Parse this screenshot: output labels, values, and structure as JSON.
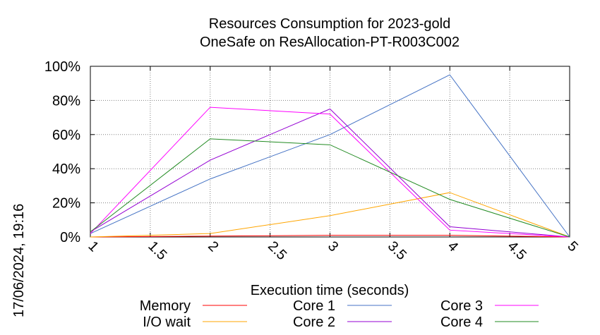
{
  "chart_data": {
    "type": "line",
    "title": "Resources Consumption for 2023-gold",
    "subtitle": "OneSafe on ResAllocation-PT-R003C002",
    "xlabel": "Execution time (seconds)",
    "ylabel": "",
    "xlim": [
      1,
      5
    ],
    "ylim": [
      0,
      100
    ],
    "x_ticks": [
      "1",
      "1.5",
      "2",
      "2.5",
      "3",
      "3.5",
      "4",
      "4.5",
      "5"
    ],
    "x_tick_values": [
      1,
      1.5,
      2,
      2.5,
      3,
      3.5,
      4,
      4.5,
      5
    ],
    "y_ticks": [
      "0%",
      "20%",
      "40%",
      "60%",
      "80%",
      "100%"
    ],
    "y_tick_values": [
      0,
      20,
      40,
      60,
      80,
      100
    ],
    "grid": true,
    "legend_position": "bottom",
    "x": [
      1,
      2,
      3,
      4,
      5
    ],
    "series": [
      {
        "name": "Memory",
        "color": "#ff0000",
        "values": [
          0,
          0.5,
          1,
          1,
          0
        ]
      },
      {
        "name": "I/O wait",
        "color": "#ffa500",
        "values": [
          0,
          2,
          12.5,
          26,
          0
        ]
      },
      {
        "name": "Core 1",
        "color": "#4472c4",
        "values": [
          2,
          34,
          60,
          95,
          0
        ]
      },
      {
        "name": "Core 2",
        "color": "#9400d3",
        "values": [
          3,
          45,
          75,
          6,
          0
        ]
      },
      {
        "name": "Core 3",
        "color": "#ff00ff",
        "values": [
          2,
          76,
          72,
          4,
          0
        ]
      },
      {
        "name": "Core 4",
        "color": "#228b22",
        "values": [
          3,
          57.5,
          54,
          22,
          0
        ]
      }
    ]
  },
  "timestamp": "17/06/2024, 19:16"
}
